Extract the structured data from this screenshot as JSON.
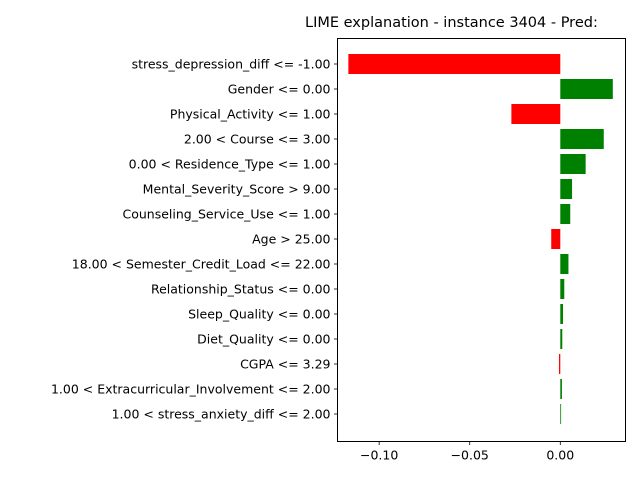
{
  "chart_data": {
    "type": "bar",
    "orientation": "horizontal",
    "title": "LIME explanation - instance 3404 - Pred:",
    "xlabel": "",
    "ylabel": "",
    "xlim": [
      -0.123,
      0.036
    ],
    "xticks": [
      -0.1,
      -0.05,
      0.0
    ],
    "xtick_labels": [
      "−0.10",
      "−0.05",
      "0.00"
    ],
    "grid": false,
    "colors": {
      "positive": "#008000",
      "negative": "#ff0000"
    },
    "bars": [
      {
        "label": "stress_depression_diff <= -1.00",
        "value": -0.117
      },
      {
        "label": "Gender <= 0.00",
        "value": 0.029
      },
      {
        "label": "Physical_Activity <= 1.00",
        "value": -0.027
      },
      {
        "label": "2.00 < Course <= 3.00",
        "value": 0.024
      },
      {
        "label": "0.00 < Residence_Type <= 1.00",
        "value": 0.014
      },
      {
        "label": "Mental_Severity_Score > 9.00",
        "value": 0.0065
      },
      {
        "label": "Counseling_Service_Use <= 1.00",
        "value": 0.0055
      },
      {
        "label": "Age > 25.00",
        "value": -0.005
      },
      {
        "label": "18.00 < Semester_Credit_Load <= 22.00",
        "value": 0.0045
      },
      {
        "label": "Relationship_Status <= 0.00",
        "value": 0.0022
      },
      {
        "label": "Sleep_Quality <= 0.00",
        "value": 0.0015
      },
      {
        "label": "Diet_Quality <= 0.00",
        "value": 0.0011
      },
      {
        "label": "CGPA <= 3.29",
        "value": -0.0007
      },
      {
        "label": "1.00 < Extracurricular_Involvement <= 2.00",
        "value": 0.0009
      },
      {
        "label": "1.00 < stress_anxiety_diff <= 2.00",
        "value": 0.0004
      }
    ]
  }
}
